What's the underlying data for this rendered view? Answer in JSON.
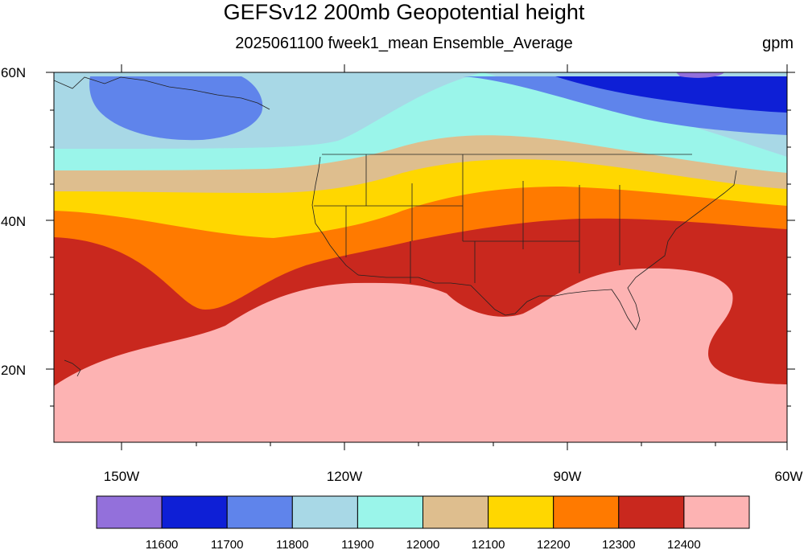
{
  "figure": {
    "title": "GEFSv12 200mb Geopotential height",
    "subtitle": "2025061100 fweek1_mean Ensemble_Average",
    "units": "gpm"
  },
  "map": {
    "lat_labels": [
      "60N",
      "40N",
      "20N"
    ],
    "lon_labels": [
      "150W",
      "120W",
      "90W",
      "60W"
    ],
    "lat_range": [
      10,
      60
    ],
    "lon_range": [
      -159,
      -60
    ]
  },
  "colorbar": {
    "colors": [
      "#9370DB",
      "#0E1FD6",
      "#5F84EB",
      "#A8D8E6",
      "#9AF5EA",
      "#DEBE8E",
      "#FFD700",
      "#FF7A00",
      "#C9281E",
      "#FDB3B3"
    ],
    "levels": [
      "11600",
      "11700",
      "11800",
      "11900",
      "12000",
      "12100",
      "12200",
      "12300",
      "12400"
    ]
  }
}
